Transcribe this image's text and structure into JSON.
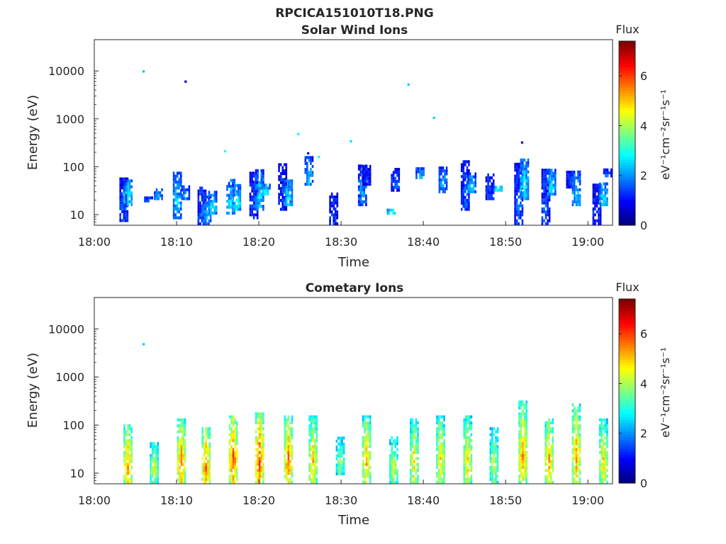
{
  "figure": {
    "title": "RPCICA151010T18.PNG"
  },
  "colorbar": {
    "label_top": "Flux",
    "unit_label": "eV⁻¹cm⁻²sr⁻¹s⁻¹",
    "ticks": [
      "0",
      "2",
      "4",
      "6"
    ],
    "range": [
      0,
      7.4
    ],
    "colormap": "jet"
  },
  "chart_data": [
    {
      "type": "heatmap",
      "title": "Solar Wind Ions",
      "xlabel": "Time",
      "ylabel": "Energy (eV)",
      "x_ticks": [
        "18:00",
        "18:10",
        "18:20",
        "18:30",
        "18:40",
        "18:50",
        "19:00"
      ],
      "x_range_min": [
        0,
        63
      ],
      "y_ticks": [
        "10",
        "100",
        "1000",
        "10000"
      ],
      "y_scale": "log",
      "y_range": [
        6,
        45000
      ],
      "z_range": [
        0,
        7.4
      ],
      "columns": [
        {
          "t": 3.5,
          "emin": 7,
          "emax": 60,
          "z": 1.6
        },
        {
          "t": 4.0,
          "emin": 15,
          "emax": 60,
          "z": 3.0
        },
        {
          "t": 6.5,
          "emin": 18,
          "emax": 25,
          "z": 1.5
        },
        {
          "t": 7.7,
          "emin": 20,
          "emax": 40,
          "z": 2.2
        },
        {
          "t": 10.0,
          "emin": 8,
          "emax": 85,
          "z": 2.5
        },
        {
          "t": 11.0,
          "emin": 20,
          "emax": 45,
          "z": 2.0
        },
        {
          "t": 13.0,
          "emin": 6,
          "emax": 40,
          "z": 1.6
        },
        {
          "t": 13.6,
          "emin": 6,
          "emax": 28,
          "z": 2.2
        },
        {
          "t": 14.3,
          "emin": 10,
          "emax": 35,
          "z": 2.8
        },
        {
          "t": 16.5,
          "emin": 10,
          "emax": 60,
          "z": 2.6
        },
        {
          "t": 17.2,
          "emin": 12,
          "emax": 45,
          "z": 3.0
        },
        {
          "t": 19.3,
          "emin": 8,
          "emax": 85,
          "z": 1.4
        },
        {
          "t": 20.0,
          "emin": 12,
          "emax": 90,
          "z": 2.6
        },
        {
          "t": 20.8,
          "emin": 25,
          "emax": 50,
          "z": 3.0
        },
        {
          "t": 22.8,
          "emin": 12,
          "emax": 120,
          "z": 1.3
        },
        {
          "t": 23.5,
          "emin": 15,
          "emax": 60,
          "z": 2.6
        },
        {
          "t": 26.0,
          "emin": 40,
          "emax": 180,
          "z": 2.4
        },
        {
          "t": 29.0,
          "emin": 6,
          "emax": 30,
          "z": 1.3
        },
        {
          "t": 32.5,
          "emin": 15,
          "emax": 120,
          "z": 2.0
        },
        {
          "t": 33.0,
          "emin": 40,
          "emax": 110,
          "z": 1.2
        },
        {
          "t": 36.0,
          "emin": 10,
          "emax": 15,
          "z": 3.0
        },
        {
          "t": 36.5,
          "emin": 30,
          "emax": 100,
          "z": 1.6
        },
        {
          "t": 39.5,
          "emin": 55,
          "emax": 100,
          "z": 2.4
        },
        {
          "t": 42.3,
          "emin": 28,
          "emax": 115,
          "z": 2.2
        },
        {
          "t": 45.0,
          "emin": 12,
          "emax": 140,
          "z": 1.6
        },
        {
          "t": 45.8,
          "emin": 28,
          "emax": 80,
          "z": 2.6
        },
        {
          "t": 48.0,
          "emin": 20,
          "emax": 80,
          "z": 1.5
        },
        {
          "t": 49.0,
          "emin": 30,
          "emax": 45,
          "z": 3.0
        },
        {
          "t": 51.5,
          "emin": 6,
          "emax": 130,
          "z": 1.6
        },
        {
          "t": 52.2,
          "emin": 20,
          "emax": 150,
          "z": 2.8
        },
        {
          "t": 54.8,
          "emin": 6,
          "emax": 95,
          "z": 1.5
        },
        {
          "t": 55.5,
          "emin": 25,
          "emax": 90,
          "z": 2.8
        },
        {
          "t": 57.8,
          "emin": 35,
          "emax": 85,
          "z": 1.4
        },
        {
          "t": 58.5,
          "emin": 15,
          "emax": 90,
          "z": 2.6
        },
        {
          "t": 61.0,
          "emin": 6,
          "emax": 50,
          "z": 1.3
        },
        {
          "t": 61.8,
          "emin": 15,
          "emax": 50,
          "z": 2.8
        },
        {
          "t": 62.3,
          "emin": 60,
          "emax": 95,
          "z": 1.6
        }
      ],
      "points": [
        {
          "t": 6.0,
          "e": 9800,
          "z": 2.3
        },
        {
          "t": 11.1,
          "e": 6000,
          "z": 0.4
        },
        {
          "t": 15.9,
          "e": 210,
          "z": 3.0
        },
        {
          "t": 24.8,
          "e": 480,
          "z": 2.8
        },
        {
          "t": 26.0,
          "e": 190,
          "z": 0.9
        },
        {
          "t": 27.3,
          "e": 160,
          "z": 3.0
        },
        {
          "t": 31.2,
          "e": 340,
          "z": 2.5
        },
        {
          "t": 38.2,
          "e": 5200,
          "z": 2.4
        },
        {
          "t": 41.3,
          "e": 1050,
          "z": 2.5
        },
        {
          "t": 52.0,
          "e": 320,
          "z": 0.8
        }
      ]
    },
    {
      "type": "heatmap",
      "title": "Cometary Ions",
      "xlabel": "Time",
      "ylabel": "Energy (eV)",
      "x_ticks": [
        "18:00",
        "18:10",
        "18:20",
        "18:30",
        "18:40",
        "18:50",
        "19:00"
      ],
      "x_range_min": [
        0,
        63
      ],
      "y_ticks": [
        "10",
        "100",
        "1000",
        "10000"
      ],
      "y_scale": "log",
      "y_range": [
        6,
        45000
      ],
      "z_range": [
        0,
        7.4
      ],
      "columns": [
        {
          "t": 4.0,
          "emin": 6,
          "emax": 110,
          "z": 5.6
        },
        {
          "t": 7.2,
          "emin": 6,
          "emax": 45,
          "z": 4.6
        },
        {
          "t": 10.5,
          "emin": 6,
          "emax": 150,
          "z": 5.8
        },
        {
          "t": 13.5,
          "emin": 6,
          "emax": 90,
          "z": 5.9
        },
        {
          "t": 16.8,
          "emin": 6,
          "emax": 170,
          "z": 6.1
        },
        {
          "t": 20.0,
          "emin": 6,
          "emax": 200,
          "z": 6.2
        },
        {
          "t": 23.5,
          "emin": 6,
          "emax": 160,
          "z": 5.8
        },
        {
          "t": 26.5,
          "emin": 6,
          "emax": 160,
          "z": 5.2
        },
        {
          "t": 29.8,
          "emin": 9,
          "emax": 60,
          "z": 4.0
        },
        {
          "t": 33.0,
          "emin": 6,
          "emax": 170,
          "z": 5.3
        },
        {
          "t": 36.3,
          "emin": 6,
          "emax": 60,
          "z": 4.5
        },
        {
          "t": 38.8,
          "emin": 6,
          "emax": 140,
          "z": 5.0
        },
        {
          "t": 42.0,
          "emin": 6,
          "emax": 180,
          "z": 5.0
        },
        {
          "t": 45.3,
          "emin": 6,
          "emax": 170,
          "z": 5.0
        },
        {
          "t": 48.5,
          "emin": 6,
          "emax": 100,
          "z": 4.4
        },
        {
          "t": 52.0,
          "emin": 6,
          "emax": 320,
          "z": 5.6
        },
        {
          "t": 55.2,
          "emin": 6,
          "emax": 150,
          "z": 5.5
        },
        {
          "t": 58.5,
          "emin": 6,
          "emax": 300,
          "z": 5.5
        },
        {
          "t": 61.8,
          "emin": 6,
          "emax": 140,
          "z": 5.0
        }
      ],
      "points": [
        {
          "t": 6.0,
          "e": 4800,
          "z": 2.4
        }
      ]
    }
  ]
}
